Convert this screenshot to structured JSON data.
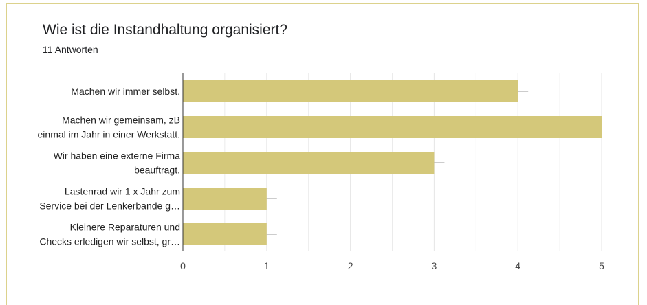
{
  "header": {
    "title": "Wie ist die Instandhaltung organisiert?",
    "response_count": "11 Antworten"
  },
  "colors": {
    "bar": "#d4c87a",
    "grid": "#e6e6e6",
    "axis": "#333333",
    "border": "#dcd28c"
  },
  "chart_data": {
    "type": "bar",
    "orientation": "horizontal",
    "title": "",
    "xlabel": "",
    "ylabel": "",
    "categories": [
      [
        "Machen wir immer selbst."
      ],
      [
        "Machen wir gemeinsam, zB",
        "einmal im Jahr in einer Werkstatt."
      ],
      [
        "Wir haben eine externe Firma",
        "beauftragt."
      ],
      [
        "Lastenrad wir 1 x Jahr zum",
        "Service bei der Lenkerbande g…"
      ],
      [
        "Kleinere Reparaturen und",
        "Checks erledigen wir selbst, gr…"
      ]
    ],
    "values": [
      4,
      5,
      3,
      1,
      1
    ],
    "xlim": [
      0,
      5
    ],
    "xticks": [
      "0",
      "1",
      "2",
      "3",
      "4",
      "5"
    ],
    "grid": true,
    "legend": "none"
  }
}
